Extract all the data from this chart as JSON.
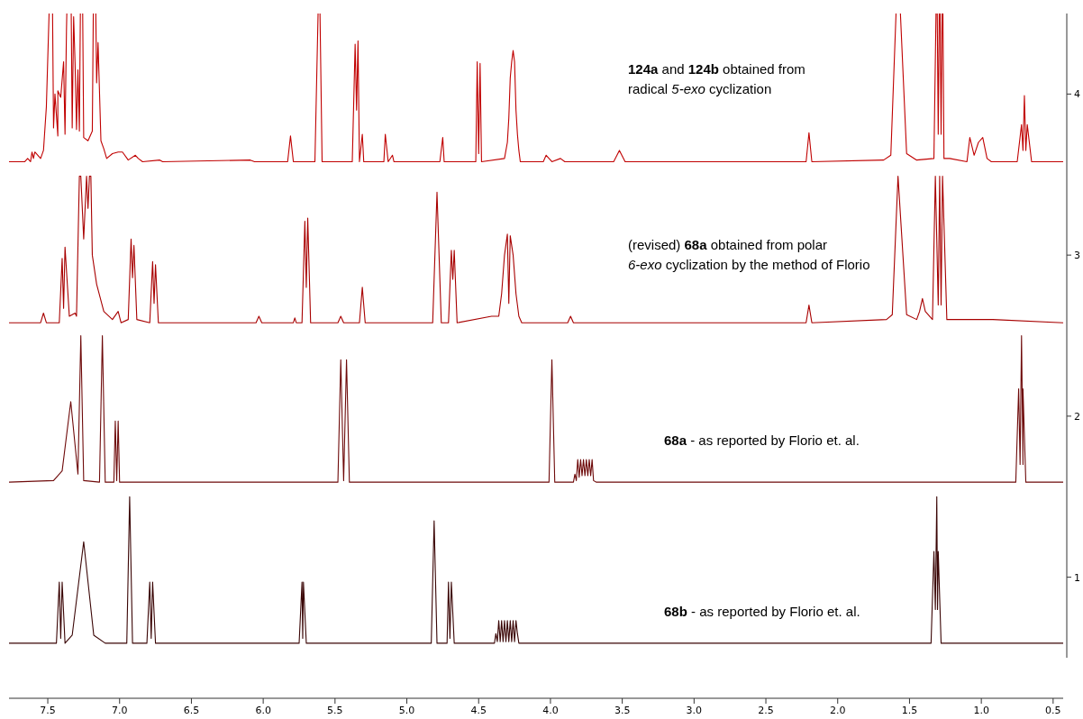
{
  "chart_data": {
    "type": "line",
    "xlim": [
      7.77,
      0.43
    ],
    "ylim": [
      0.5,
      4.5
    ],
    "xticks": [
      7.5,
      {
        "value": 7,
        "label": "7.0"
      },
      6.5,
      {
        "value": 6,
        "label": "6.0"
      },
      5.5,
      {
        "value": 5,
        "label": "5.0"
      },
      4.5,
      {
        "value": 4,
        "label": "4.0"
      },
      3.5,
      {
        "value": 3,
        "label": "3.0"
      },
      2.5,
      {
        "value": 2,
        "label": "2.0"
      },
      1.5,
      {
        "value": 1,
        "label": "1.0"
      },
      0.5
    ],
    "yticks": [
      1,
      2,
      3,
      4
    ],
    "grid": false,
    "series": [
      {
        "name": "124a and 124b obtained from\nradical 5-exo cyclization",
        "color": "#c00000",
        "x": [
          7.77,
          7.66,
          7.64,
          7.62,
          7.61,
          7.6,
          7.59,
          7.55,
          7.53,
          7.51,
          7.48,
          7.47,
          7.46,
          7.45,
          7.43,
          7.43,
          7.41,
          7.39,
          7.38,
          7.37,
          7.36,
          7.34,
          7.33,
          7.32,
          7.31,
          7.3,
          7.29,
          7.28,
          7.27,
          7.26,
          7.25,
          7.22,
          7.19,
          7.18,
          7.17,
          7.16,
          7.15,
          7.13,
          7.11,
          7.09,
          7.05,
          7.01,
          6.98,
          6.94,
          6.89,
          6.87,
          6.84,
          6.72,
          6.7,
          6.09,
          6.06,
          5.83,
          5.81,
          5.79,
          5.64,
          5.61,
          5.59,
          5.38,
          5.36,
          5.35,
          5.34,
          5.33,
          5.31,
          5.3,
          5.16,
          5.15,
          5.13,
          5.1,
          5.09,
          4.77,
          4.75,
          4.74,
          4.52,
          4.51,
          4.5,
          4.49,
          4.48,
          4.32,
          4.3,
          4.29,
          4.28,
          4.27,
          4.26,
          4.25,
          4.24,
          4.23,
          4.22,
          4.21,
          4.05,
          4.03,
          3.99,
          3.93,
          3.9,
          3.56,
          3.52,
          3.48,
          2.22,
          2.2,
          2.18,
          1.68,
          1.63,
          1.58,
          1.52,
          1.45,
          1.33,
          1.31,
          1.3,
          1.29,
          1.28,
          1.27,
          1.26,
          1.22,
          1.1,
          1.08,
          1.05,
          1.02,
          0.99,
          0.96,
          0.93,
          0.75,
          0.72,
          0.71,
          0.7,
          0.69,
          0.68,
          0.65,
          0.43
        ],
        "values": [
          3.58,
          3.58,
          3.6,
          3.58,
          3.64,
          3.6,
          3.64,
          3.6,
          3.65,
          3.92,
          null,
          null,
          3.79,
          4.0,
          3.74,
          4.02,
          3.98,
          4.2,
          3.75,
          4.39,
          null,
          null,
          3.79,
          4.48,
          4.19,
          3.78,
          4.15,
          3.77,
          null,
          null,
          3.73,
          3.71,
          3.77,
          null,
          null,
          4.07,
          4.32,
          3.71,
          3.66,
          3.6,
          3.63,
          3.64,
          3.64,
          3.59,
          3.62,
          3.6,
          3.58,
          3.59,
          3.58,
          3.59,
          3.58,
          3.58,
          3.74,
          3.58,
          3.58,
          null,
          3.58,
          3.58,
          4.31,
          3.9,
          4.33,
          3.58,
          3.75,
          3.58,
          3.58,
          3.75,
          3.58,
          3.62,
          3.58,
          3.58,
          3.73,
          3.58,
          3.58,
          4.2,
          3.63,
          4.19,
          3.58,
          3.6,
          3.7,
          3.85,
          4.1,
          4.2,
          4.27,
          4.2,
          3.9,
          3.75,
          3.65,
          3.58,
          3.58,
          3.62,
          3.58,
          3.6,
          3.58,
          3.58,
          3.65,
          3.58,
          3.58,
          3.76,
          3.58,
          3.59,
          3.62,
          null,
          3.63,
          3.59,
          3.6,
          null,
          3.75,
          null,
          3.75,
          null,
          3.6,
          3.6,
          3.58,
          3.73,
          3.62,
          3.7,
          3.73,
          3.6,
          3.58,
          3.58,
          3.81,
          3.65,
          3.99,
          3.65,
          3.81,
          3.58,
          3.58
        ]
      },
      {
        "name": "(revised) 68a obtained from polar\n6-exo cyclization by the method of Florio",
        "color": "#a80000",
        "x": [
          7.77,
          7.55,
          7.53,
          7.51,
          7.42,
          7.4,
          7.39,
          7.38,
          7.35,
          7.31,
          7.3,
          7.28,
          7.27,
          7.25,
          7.23,
          7.22,
          7.21,
          7.2,
          7.19,
          7.18,
          7.16,
          7.11,
          7.05,
          7.01,
          6.99,
          6.94,
          6.92,
          6.91,
          6.9,
          6.88,
          6.79,
          6.77,
          6.76,
          6.75,
          6.73,
          6.05,
          6.03,
          6.01,
          5.79,
          5.78,
          5.77,
          5.73,
          5.71,
          5.7,
          5.69,
          5.67,
          5.48,
          5.46,
          5.44,
          5.33,
          5.31,
          5.29,
          4.82,
          4.79,
          4.76,
          4.71,
          4.69,
          4.68,
          4.67,
          4.65,
          4.41,
          4.36,
          4.34,
          4.32,
          4.3,
          4.29,
          4.28,
          4.26,
          4.24,
          4.22,
          4.2,
          3.88,
          3.86,
          3.84,
          2.22,
          2.2,
          2.18,
          1.66,
          1.62,
          1.58,
          1.52,
          1.45,
          1.43,
          1.41,
          1.39,
          1.34,
          1.32,
          1.3,
          1.29,
          1.28,
          1.27,
          1.24,
          0.92,
          0.43
        ],
        "values": [
          2.58,
          2.58,
          2.64,
          2.58,
          2.58,
          2.98,
          2.67,
          3.05,
          2.62,
          2.64,
          2.62,
          3.49,
          3.49,
          3.1,
          3.49,
          3.29,
          3.49,
          3.49,
          3.0,
          2.94,
          2.82,
          2.65,
          2.6,
          2.65,
          2.58,
          2.6,
          3.1,
          2.86,
          3.06,
          2.6,
          2.58,
          2.96,
          2.7,
          2.94,
          2.58,
          2.58,
          2.62,
          2.58,
          2.58,
          2.61,
          2.58,
          2.58,
          3.21,
          2.8,
          3.23,
          2.58,
          2.58,
          2.62,
          2.58,
          2.58,
          2.8,
          2.58,
          2.58,
          3.39,
          2.58,
          2.58,
          3.03,
          2.85,
          3.03,
          2.58,
          2.62,
          2.62,
          2.76,
          3.0,
          3.13,
          2.7,
          3.12,
          3.0,
          2.76,
          2.62,
          2.58,
          2.58,
          2.62,
          2.58,
          2.58,
          2.69,
          2.58,
          2.6,
          2.63,
          3.49,
          2.63,
          2.6,
          2.65,
          2.73,
          2.65,
          2.6,
          3.49,
          2.69,
          3.49,
          2.69,
          3.49,
          2.6,
          2.6,
          2.58
        ]
      },
      {
        "name": "68a - as reported by Florio et. al.",
        "color": "#6e0a0a",
        "x": [
          7.77,
          7.46,
          7.4,
          7.34,
          7.29,
          7.27,
          7.25,
          7.14,
          7.12,
          7.1,
          7.04,
          7.03,
          7.02,
          7.01,
          7.0,
          5.48,
          5.46,
          5.44,
          5.42,
          5.4,
          4.01,
          3.99,
          3.97,
          3.84,
          3.83,
          3.82,
          3.81,
          3.8,
          3.79,
          3.78,
          3.77,
          3.76,
          3.75,
          3.74,
          3.73,
          3.72,
          3.71,
          3.7,
          3.68,
          0.76,
          0.74,
          0.73,
          0.72,
          0.71,
          0.71,
          0.69,
          0.43
        ],
        "values": [
          1.59,
          1.6,
          1.66,
          2.09,
          1.64,
          2.5,
          1.6,
          1.59,
          2.5,
          1.59,
          1.59,
          1.97,
          1.6,
          1.97,
          1.59,
          1.59,
          2.35,
          1.6,
          2.35,
          1.59,
          1.59,
          2.35,
          1.59,
          1.59,
          1.64,
          1.6,
          1.73,
          1.62,
          1.73,
          1.63,
          1.73,
          1.63,
          1.73,
          1.63,
          1.73,
          1.63,
          1.73,
          1.6,
          1.59,
          1.59,
          2.17,
          1.7,
          2.5,
          1.7,
          2.17,
          1.59,
          1.59
        ]
      },
      {
        "name": "68b - as reported by Florio et. al.",
        "color": "#3a0505",
        "x": [
          7.77,
          7.44,
          7.42,
          7.41,
          7.4,
          7.38,
          7.33,
          7.25,
          7.18,
          7.1,
          6.95,
          6.93,
          6.91,
          6.81,
          6.79,
          6.78,
          6.77,
          6.75,
          5.75,
          5.73,
          5.725,
          5.72,
          5.7,
          4.83,
          4.81,
          4.79,
          4.72,
          4.71,
          4.7,
          4.69,
          4.67,
          4.39,
          4.38,
          4.37,
          4.36,
          4.35,
          4.34,
          4.33,
          4.32,
          4.31,
          4.3,
          4.29,
          4.28,
          4.27,
          4.26,
          4.25,
          4.24,
          4.23,
          4.22,
          1.35,
          1.33,
          1.32,
          1.31,
          1.305,
          1.3,
          1.28,
          0.43
        ],
        "values": [
          0.59,
          0.59,
          0.97,
          0.62,
          0.97,
          0.59,
          0.64,
          1.22,
          0.64,
          0.59,
          0.59,
          1.5,
          0.59,
          0.59,
          0.97,
          0.62,
          0.97,
          0.59,
          0.59,
          0.97,
          0.62,
          0.97,
          0.59,
          0.59,
          1.35,
          0.59,
          0.59,
          0.97,
          0.62,
          0.97,
          0.59,
          0.59,
          0.65,
          0.6,
          0.73,
          0.6,
          0.73,
          0.6,
          0.73,
          0.6,
          0.73,
          0.6,
          0.73,
          0.6,
          0.73,
          0.6,
          0.73,
          0.65,
          0.59,
          0.59,
          1.16,
          0.8,
          1.5,
          0.8,
          1.16,
          0.59,
          0.59
        ]
      }
    ]
  }
}
